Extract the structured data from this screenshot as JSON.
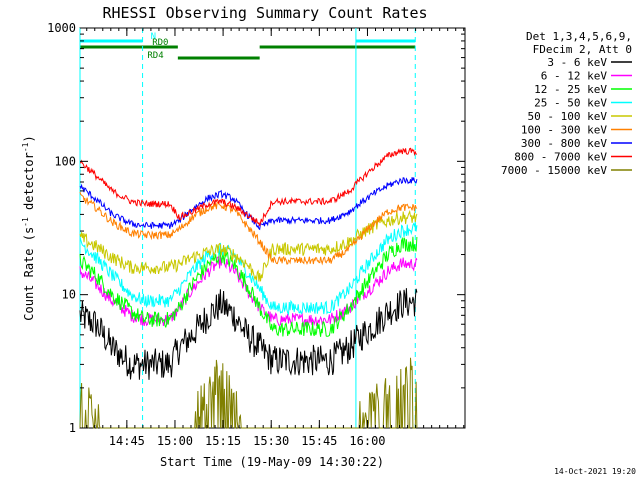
{
  "chart_data": {
    "type": "line",
    "title": "RHESSI Observing Summary Count Rates",
    "xlabel": "Start Time (19-May-09 14:30:22)",
    "ylabel_main": "Count Rate (s",
    "ylabel_sup1": "-1",
    "ylabel_mid": " detector",
    "ylabel_sup2": "-1",
    "ylabel_end": ")",
    "yscale": "log",
    "ylim": [
      1,
      1000
    ],
    "xlim_min": [
      0,
      120
    ],
    "x_ticks": [
      {
        "label": "14:45",
        "t": 14.6
      },
      {
        "label": "15:00",
        "t": 29.6
      },
      {
        "label": "15:15",
        "t": 44.6
      },
      {
        "label": "15:30",
        "t": 59.6
      },
      {
        "label": "15:45",
        "t": 74.6
      },
      {
        "label": "16:00",
        "t": 89.6
      }
    ],
    "y_ticks": [
      {
        "label": "1",
        "v": 1
      },
      {
        "label": "10",
        "v": 10
      },
      {
        "label": "100",
        "v": 100
      },
      {
        "label": "1000",
        "v": 1000
      }
    ],
    "legend_header": [
      "Det 1,3,4,5,6,9,",
      "FDecim 2, Att 0"
    ],
    "series": [
      {
        "name": "3 - 6 keV",
        "color": "#000000",
        "t": [
          0,
          5,
          10,
          16,
          20,
          24,
          28,
          31,
          35,
          40,
          44,
          48,
          52,
          56,
          60,
          65,
          72,
          78,
          84,
          88,
          92,
          96,
          100,
          105
        ],
        "values": [
          7,
          6,
          4,
          3,
          3,
          3,
          3,
          4,
          5,
          7,
          8.5,
          7,
          5,
          4,
          3.2,
          3.2,
          3.2,
          3.2,
          4,
          5,
          6,
          7.5,
          8.5,
          9
        ]
      },
      {
        "name": "6 - 12 keV",
        "color": "#ff00ff",
        "t": [
          0,
          5,
          10,
          16,
          20,
          24,
          28,
          31,
          35,
          40,
          44,
          48,
          52,
          56,
          60,
          65,
          72,
          78,
          84,
          88,
          92,
          96,
          100,
          105
        ],
        "values": [
          15,
          12,
          9,
          7,
          6.5,
          6.5,
          6.5,
          8,
          11,
          15,
          18,
          15,
          11,
          8,
          6.5,
          6.5,
          6.5,
          6.5,
          8,
          10,
          12,
          15,
          17,
          17
        ]
      },
      {
        "name": "12 - 25 keV",
        "color": "#00ff00",
        "t": [
          0,
          5,
          10,
          16,
          20,
          24,
          28,
          31,
          35,
          40,
          44,
          48,
          52,
          56,
          60,
          65,
          72,
          78,
          84,
          88,
          92,
          96,
          100,
          105
        ],
        "values": [
          18,
          14,
          10,
          7.5,
          6.5,
          6.5,
          6.5,
          8,
          12,
          17,
          20,
          17,
          12,
          8,
          5.5,
          5.5,
          5.5,
          5.5,
          8,
          11,
          15,
          20,
          24,
          24
        ]
      },
      {
        "name": "25 - 50 keV",
        "color": "#00ffff",
        "t": [
          0,
          5,
          10,
          16,
          20,
          24,
          28,
          31,
          35,
          40,
          44,
          48,
          52,
          56,
          60,
          65,
          72,
          78,
          84,
          88,
          92,
          96,
          100,
          105
        ],
        "values": [
          25,
          19,
          14,
          10,
          9,
          9,
          9,
          11,
          15,
          20,
          22,
          20,
          15,
          11,
          8,
          8,
          8,
          8,
          11,
          15,
          20,
          26,
          30,
          32
        ]
      },
      {
        "name": "50 - 100 keV",
        "color": "#c8c800",
        "t": [
          0,
          5,
          10,
          16,
          20,
          24,
          28,
          31,
          35,
          40,
          44,
          48,
          52,
          56,
          60,
          65,
          72,
          78,
          84,
          88,
          92,
          96,
          100,
          105
        ],
        "values": [
          27,
          23,
          19,
          16,
          16,
          16,
          16,
          17,
          19,
          21,
          22,
          20,
          17,
          13,
          22,
          22,
          22,
          22,
          25,
          29,
          33,
          36,
          38,
          38
        ]
      },
      {
        "name": "100 - 300 keV",
        "color": "#ff8000",
        "t": [
          0,
          5,
          10,
          16,
          20,
          24,
          28,
          31,
          35,
          40,
          44,
          48,
          52,
          56,
          60,
          65,
          72,
          78,
          84,
          88,
          92,
          96,
          100,
          105
        ],
        "values": [
          55,
          45,
          35,
          29,
          28,
          28,
          28,
          31,
          38,
          45,
          47,
          43,
          33,
          25,
          18,
          18,
          18,
          18,
          22,
          28,
          35,
          42,
          45,
          45
        ]
      },
      {
        "name": "300 - 800 keV",
        "color": "#0000ff",
        "t": [
          0,
          5,
          10,
          16,
          20,
          24,
          28,
          31,
          35,
          40,
          44,
          48,
          52,
          56,
          60,
          65,
          72,
          78,
          84,
          88,
          92,
          96,
          100,
          105
        ],
        "values": [
          65,
          52,
          40,
          34,
          33,
          33,
          33,
          36,
          44,
          53,
          57,
          52,
          40,
          32,
          36,
          36,
          36,
          36,
          42,
          50,
          58,
          66,
          72,
          72
        ]
      },
      {
        "name": "800 - 7000 keV",
        "color": "#ff0000",
        "t": [
          0,
          5,
          10,
          16,
          20,
          24,
          28,
          31,
          35,
          40,
          44,
          48,
          52,
          56,
          60,
          65,
          72,
          78,
          84,
          88,
          92,
          96,
          100,
          105
        ],
        "values": [
          100,
          78,
          60,
          50,
          48,
          48,
          48,
          38,
          42,
          48,
          50,
          46,
          40,
          34,
          50,
          50,
          50,
          50,
          60,
          75,
          92,
          110,
          120,
          118
        ]
      },
      {
        "name": "7000 - 15000 keV",
        "color": "#808000",
        "t": [
          0,
          5,
          10,
          16,
          20,
          24,
          28,
          31,
          35,
          40,
          44,
          48,
          52,
          56,
          60,
          65,
          72,
          78,
          84,
          88,
          92,
          96,
          100,
          105
        ],
        "values": [
          1.8,
          1.4,
          1,
          1,
          1,
          1,
          1,
          1,
          1.2,
          2.2,
          2.7,
          1.8,
          1,
          1,
          1,
          1,
          1,
          1,
          1,
          1.4,
          1.8,
          2.2,
          2.7,
          2.7
        ]
      }
    ],
    "vertical_lines": [
      {
        "t": 0,
        "color": "#00ffff",
        "style": "solid"
      },
      {
        "t": 19.5,
        "color": "#00ffff",
        "style": "dashed"
      },
      {
        "t": 86,
        "color": "#00ffff",
        "style": "solid"
      },
      {
        "t": 104.5,
        "color": "#00ffff",
        "style": "dashed"
      }
    ],
    "flag_bars": [
      {
        "label": "N",
        "color": "#00ffff",
        "row": 0,
        "segments": [
          [
            0,
            19.5
          ],
          [
            86,
            104.5
          ]
        ]
      },
      {
        "label": "RD0",
        "color": "#008000",
        "row": 1,
        "segments": [
          [
            0,
            30.5
          ],
          [
            56,
            104.5
          ]
        ]
      },
      {
        "label": "RD4",
        "color": "#008000",
        "row": 2,
        "segments": [
          [
            30.5,
            56
          ]
        ]
      }
    ],
    "timestamp": "14-Oct-2021 19:20"
  }
}
